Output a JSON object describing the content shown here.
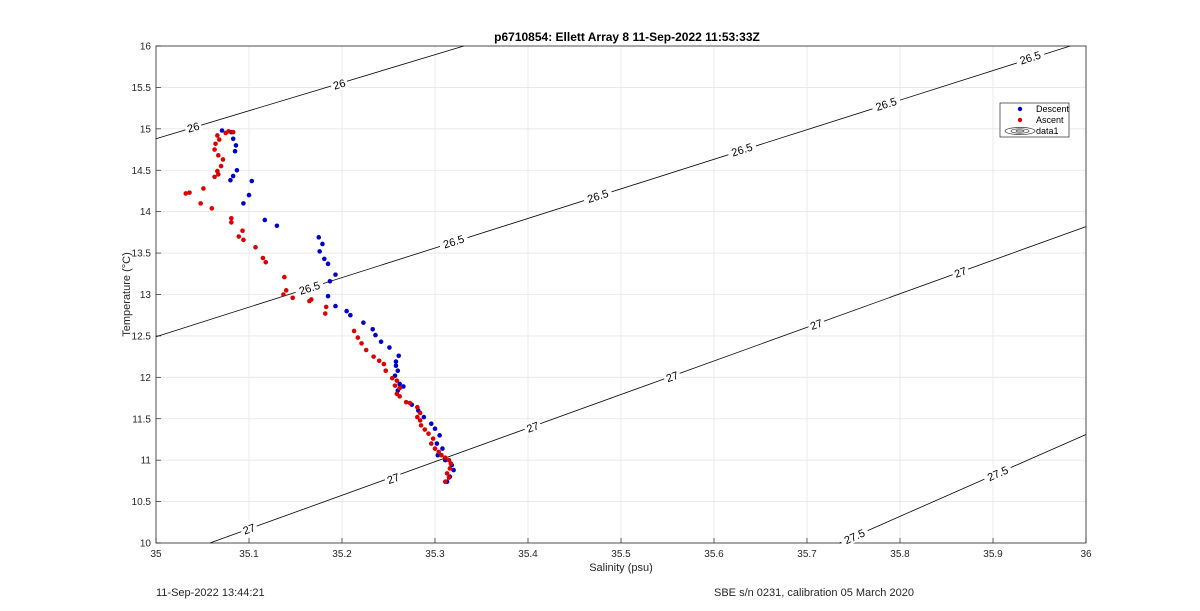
{
  "footer": {
    "left": "11-Sep-2022 13:44:21",
    "right": "SBE s/n 0231, calibration 05 March 2020"
  },
  "chart_data": {
    "type": "scatter",
    "title": "p6710854: Ellett Array 8 11-Sep-2022 11:53:33Z",
    "xlabel": "Salinity (psu)",
    "ylabel": "Temperature (°C)",
    "xlim": [
      35,
      36
    ],
    "ylim": [
      10,
      16
    ],
    "xticks": [
      "35",
      "35.1",
      "35.2",
      "35.3",
      "35.4",
      "35.5",
      "35.6",
      "35.7",
      "35.8",
      "35.9",
      "36"
    ],
    "yticks": [
      "10",
      "10.5",
      "11",
      "11.5",
      "12",
      "12.5",
      "13",
      "13.5",
      "14",
      "14.5",
      "15",
      "15.5",
      "16"
    ],
    "grid": true,
    "legend_position": "top-right",
    "colors": {
      "descent": "#0000cc",
      "ascent": "#dd0000",
      "contour": "#000000",
      "grid": "#e6e6e6"
    },
    "series": [
      {
        "name": "Descent",
        "marker": "dot",
        "points": [
          [
            35.071,
            14.98
          ],
          [
            35.081,
            14.96
          ],
          [
            35.083,
            14.88
          ],
          [
            35.086,
            14.8
          ],
          [
            35.085,
            14.73
          ],
          [
            35.087,
            14.5
          ],
          [
            35.083,
            14.43
          ],
          [
            35.08,
            14.38
          ],
          [
            35.103,
            14.37
          ],
          [
            35.1,
            14.2
          ],
          [
            35.094,
            14.1
          ],
          [
            35.117,
            13.9
          ],
          [
            35.13,
            13.83
          ],
          [
            35.175,
            13.69
          ],
          [
            35.179,
            13.61
          ],
          [
            35.176,
            13.52
          ],
          [
            35.181,
            13.43
          ],
          [
            35.185,
            13.37
          ],
          [
            35.193,
            13.24
          ],
          [
            35.187,
            13.16
          ],
          [
            35.185,
            12.98
          ],
          [
            35.193,
            12.86
          ],
          [
            35.205,
            12.8
          ],
          [
            35.209,
            12.75
          ],
          [
            35.223,
            12.66
          ],
          [
            35.233,
            12.58
          ],
          [
            35.236,
            12.51
          ],
          [
            35.242,
            12.43
          ],
          [
            35.251,
            12.36
          ],
          [
            35.261,
            12.26
          ],
          [
            35.258,
            12.19
          ],
          [
            35.258,
            12.14
          ],
          [
            35.26,
            12.08
          ],
          [
            35.257,
            12.02
          ],
          [
            35.262,
            11.92
          ],
          [
            35.266,
            11.89
          ],
          [
            35.26,
            11.84
          ],
          [
            35.275,
            11.67
          ],
          [
            35.282,
            11.6
          ],
          [
            35.288,
            11.52
          ],
          [
            35.296,
            11.44
          ],
          [
            35.3,
            11.38
          ],
          [
            35.305,
            11.3
          ],
          [
            35.302,
            11.2
          ],
          [
            35.308,
            11.14
          ],
          [
            35.303,
            11.06
          ],
          [
            35.311,
            11.0
          ],
          [
            35.318,
            10.94
          ],
          [
            35.32,
            10.88
          ],
          [
            35.316,
            10.8
          ],
          [
            35.313,
            10.74
          ]
        ]
      },
      {
        "name": "Ascent",
        "marker": "dot",
        "points": [
          [
            35.066,
            14.92
          ],
          [
            35.068,
            14.87
          ],
          [
            35.075,
            14.95
          ],
          [
            35.078,
            14.97
          ],
          [
            35.083,
            14.96
          ],
          [
            35.064,
            14.82
          ],
          [
            35.063,
            14.75
          ],
          [
            35.067,
            14.68
          ],
          [
            35.072,
            14.63
          ],
          [
            35.07,
            14.55
          ],
          [
            35.066,
            14.49
          ],
          [
            35.063,
            14.42
          ],
          [
            35.067,
            14.45
          ],
          [
            35.032,
            14.22
          ],
          [
            35.036,
            14.23
          ],
          [
            35.051,
            14.28
          ],
          [
            35.048,
            14.1
          ],
          [
            35.06,
            14.04
          ],
          [
            35.081,
            13.92
          ],
          [
            35.081,
            13.87
          ],
          [
            35.093,
            13.77
          ],
          [
            35.089,
            13.7
          ],
          [
            35.094,
            13.66
          ],
          [
            35.107,
            13.57
          ],
          [
            35.115,
            13.44
          ],
          [
            35.118,
            13.39
          ],
          [
            35.138,
            13.21
          ],
          [
            35.14,
            13.05
          ],
          [
            35.137,
            13.0
          ],
          [
            35.147,
            12.96
          ],
          [
            35.165,
            12.92
          ],
          [
            35.167,
            12.94
          ],
          [
            35.183,
            12.85
          ],
          [
            35.182,
            12.77
          ],
          [
            35.213,
            12.56
          ],
          [
            35.217,
            12.48
          ],
          [
            35.221,
            12.41
          ],
          [
            35.226,
            12.33
          ],
          [
            35.234,
            12.25
          ],
          [
            35.24,
            12.2
          ],
          [
            35.245,
            12.16
          ],
          [
            35.247,
            12.08
          ],
          [
            35.254,
            11.99
          ],
          [
            35.259,
            11.96
          ],
          [
            35.257,
            11.9
          ],
          [
            35.262,
            11.87
          ],
          [
            35.259,
            11.8
          ],
          [
            35.262,
            11.77
          ],
          [
            35.269,
            11.7
          ],
          [
            35.273,
            11.69
          ],
          [
            35.281,
            11.64
          ],
          [
            35.284,
            11.57
          ],
          [
            35.281,
            11.52
          ],
          [
            35.284,
            11.48
          ],
          [
            35.285,
            11.42
          ],
          [
            35.289,
            11.37
          ],
          [
            35.293,
            11.32
          ],
          [
            35.298,
            11.26
          ],
          [
            35.296,
            11.2
          ],
          [
            35.3,
            11.14
          ],
          [
            35.304,
            11.1
          ],
          [
            35.307,
            11.06
          ],
          [
            35.311,
            11.03
          ],
          [
            35.315,
            11.0
          ],
          [
            35.317,
            10.96
          ],
          [
            35.316,
            10.9
          ],
          [
            35.313,
            10.84
          ],
          [
            35.315,
            10.79
          ],
          [
            35.311,
            10.74
          ]
        ]
      },
      {
        "name": "data1",
        "marker": "contour"
      }
    ],
    "contours": [
      {
        "sigma": "26",
        "segments": [
          [
            [
              35.0,
              14.88
            ],
            [
              35.331,
              16.0
            ]
          ]
        ],
        "labels": [
          [
            35.04,
            15.02
          ],
          [
            35.197,
            15.54
          ]
        ]
      },
      {
        "sigma": "26.5",
        "segments": [
          [
            [
              35.0,
              12.49
            ],
            [
              35.983,
              16.0
            ]
          ]
        ],
        "labels": [
          [
            35.165,
            13.08
          ],
          [
            35.32,
            13.64
          ],
          [
            35.475,
            14.19
          ],
          [
            35.63,
            14.75
          ],
          [
            35.785,
            15.3
          ],
          [
            35.94,
            15.86
          ]
        ]
      },
      {
        "sigma": "27",
        "segments": [
          [
            [
              35.058,
              10.0
            ],
            [
              36.0,
              13.82
            ]
          ]
        ],
        "labels": [
          [
            35.1,
            10.17
          ],
          [
            35.255,
            10.78
          ],
          [
            35.405,
            11.4
          ],
          [
            35.555,
            12.01
          ],
          [
            35.71,
            12.64
          ],
          [
            35.865,
            13.27
          ]
        ]
      },
      {
        "sigma": "27.5",
        "segments": [
          [
            [
              35.735,
              10.0
            ],
            [
              36.0,
              11.31
            ]
          ]
        ],
        "labels": [
          [
            35.751,
            10.08
          ],
          [
            35.905,
            10.84
          ]
        ]
      }
    ]
  }
}
